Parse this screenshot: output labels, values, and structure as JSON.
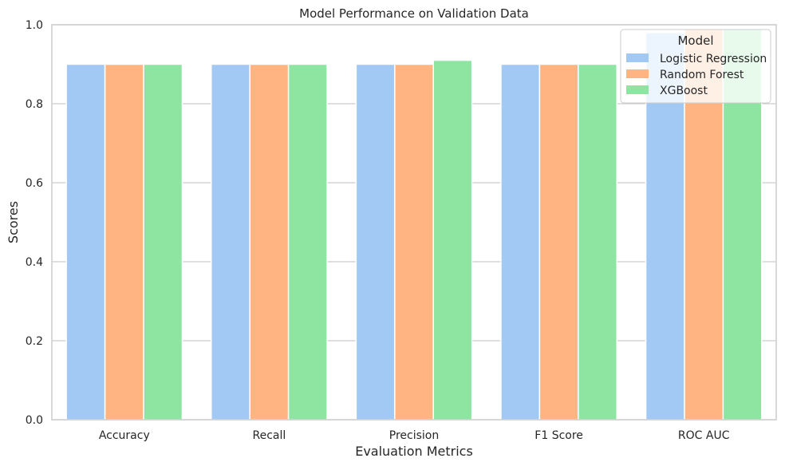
{
  "chart_data": {
    "type": "bar",
    "title": "Model Performance on Validation Data",
    "xlabel": "Evaluation Metrics",
    "ylabel": "Scores",
    "categories": [
      "Accuracy",
      "Recall",
      "Precision",
      "F1 Score",
      "ROC AUC"
    ],
    "series": [
      {
        "name": "Logistic Regression",
        "color": "#a1c9f4",
        "values": [
          0.9,
          0.9,
          0.9,
          0.9,
          0.98
        ]
      },
      {
        "name": "Random Forest",
        "color": "#ffb482",
        "values": [
          0.9,
          0.9,
          0.9,
          0.9,
          0.99
        ]
      },
      {
        "name": "XGBoost",
        "color": "#8de5a1",
        "values": [
          0.9,
          0.9,
          0.91,
          0.9,
          0.99
        ]
      }
    ],
    "ylim": [
      0,
      1.0
    ],
    "yticks": [
      "0.0",
      "0.2",
      "0.4",
      "0.6",
      "0.8",
      "1.0"
    ],
    "grid": true,
    "legend": {
      "title": "Model",
      "placement": "top-right"
    }
  }
}
